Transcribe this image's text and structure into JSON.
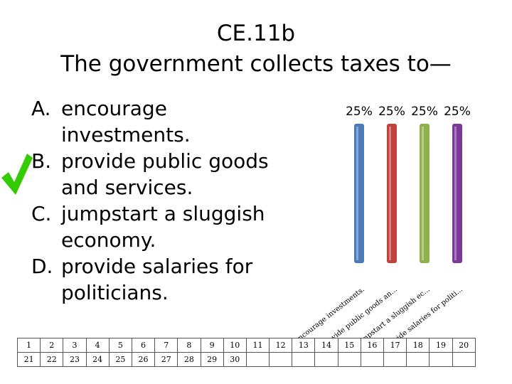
{
  "title": {
    "line1": "CE.11b",
    "line2": "The government collects taxes to—"
  },
  "options": [
    {
      "letter": "A.",
      "text": "encourage investments."
    },
    {
      "letter": "B.",
      "text": "provide public goods and services."
    },
    {
      "letter": "C.",
      "text": "jumpstart a sluggish economy."
    },
    {
      "letter": "D.",
      "text": "provide salaries for politicians."
    }
  ],
  "correct_marker": {
    "icon": "check-icon",
    "color": "#33cc00"
  },
  "chart_data": {
    "type": "bar",
    "categories": [
      "encourage investments.",
      "provide public goods an...",
      "jumpstart a sluggish ec...",
      "provide salaries for politi..."
    ],
    "values": [
      25,
      25,
      25,
      25
    ],
    "value_labels": [
      "25%",
      "25%",
      "25%",
      "25%"
    ],
    "colors": [
      "#4a7ab8",
      "#c0423d",
      "#8fb04a",
      "#7a3a9a"
    ],
    "title": "",
    "xlabel": "",
    "ylabel": "",
    "ylim": [
      0,
      25
    ]
  },
  "response_grid": {
    "rows": [
      [
        "1",
        "2",
        "3",
        "4",
        "5",
        "6",
        "7",
        "8",
        "9",
        "10",
        "11",
        "12",
        "13",
        "14",
        "15",
        "16",
        "17",
        "18",
        "19",
        "20"
      ],
      [
        "21",
        "22",
        "23",
        "24",
        "25",
        "26",
        "27",
        "28",
        "29",
        "30",
        "",
        "",
        "",
        "",
        "",
        "",
        "",
        "",
        "",
        ""
      ]
    ]
  }
}
